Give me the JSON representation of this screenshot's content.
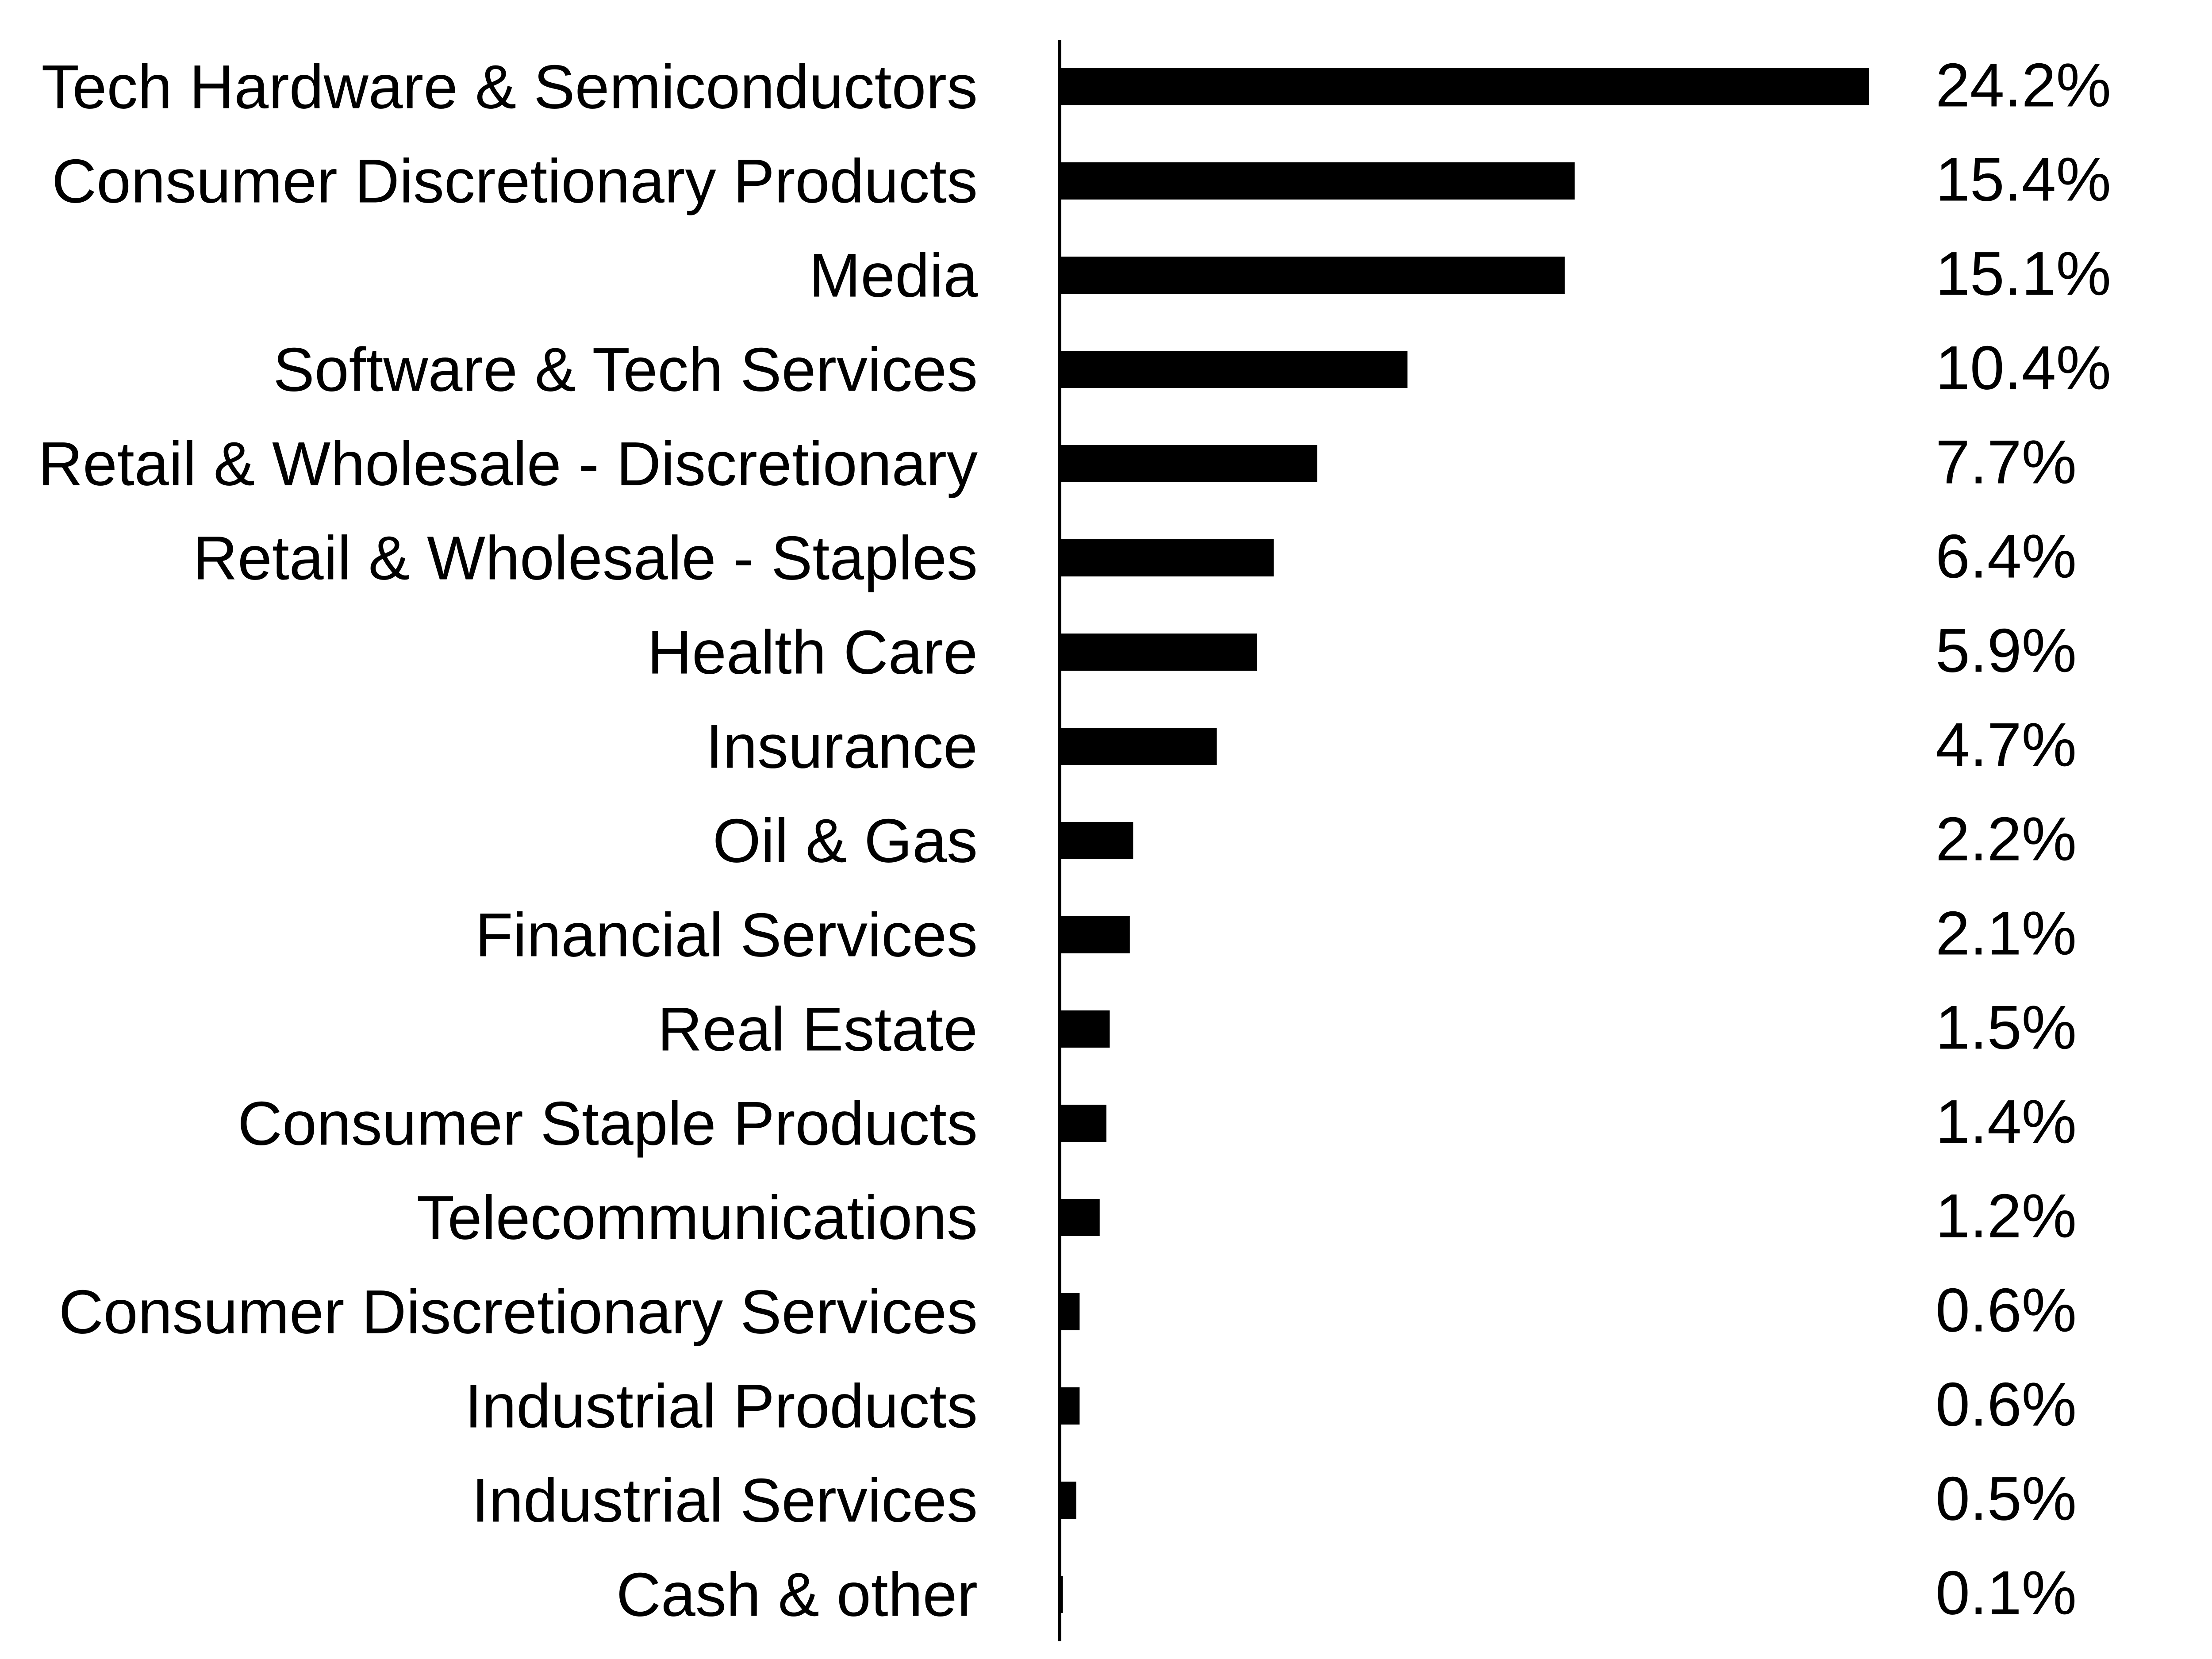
{
  "chart_data": {
    "type": "bar",
    "orientation": "horizontal",
    "categories": [
      "Tech Hardware & Semiconductors",
      "Consumer Discretionary Products",
      "Media",
      "Software & Tech Services",
      "Retail & Wholesale - Discretionary",
      "Retail & Wholesale - Staples",
      "Health Care",
      "Insurance",
      "Oil & Gas",
      "Financial Services",
      "Real Estate",
      "Consumer Staple Products",
      "Telecommunications",
      "Consumer Discretionary Services",
      "Industrial Products",
      "Industrial Services",
      "Cash & other"
    ],
    "values": [
      24.2,
      15.4,
      15.1,
      10.4,
      7.7,
      6.4,
      5.9,
      4.7,
      2.2,
      2.1,
      1.5,
      1.4,
      1.2,
      0.6,
      0.6,
      0.5,
      0.1
    ],
    "value_labels": [
      "24.2%",
      "15.4%",
      "15.1%",
      "10.4%",
      "7.7%",
      "6.4%",
      "5.9%",
      "4.7%",
      "2.2%",
      "2.1%",
      "1.5%",
      "1.4%",
      "1.2%",
      "0.6%",
      "0.6%",
      "0.5%",
      "0.1%"
    ],
    "unit": "%",
    "title": "",
    "xlabel": "",
    "ylabel": "",
    "xlim": [
      0,
      24.2
    ],
    "grid": false,
    "legend": "none",
    "bar_color": "#000000",
    "axis_color": "#000000",
    "text_color": "#000000"
  }
}
